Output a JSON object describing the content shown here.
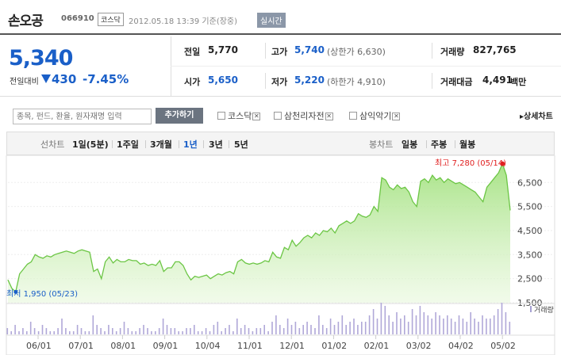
{
  "header": {
    "stock_name": "손오공",
    "stock_code": "066910",
    "market": "코스닥",
    "timestamp": "2012.05.18 13:39  기준(장중)",
    "realtime_btn": "실시간"
  },
  "price": {
    "current": "5,340",
    "change_label": "전일대비",
    "change_amount": "430",
    "change_pct": "-7.45%"
  },
  "stats": {
    "prev_close_label": "전일",
    "prev_close": "5,770",
    "high_label": "고가",
    "high": "5,740",
    "upper_limit": "(상한가 6,630)",
    "volume_label": "거래량",
    "volume": "827,765",
    "open_label": "시가",
    "open": "5,650",
    "low_label": "저가",
    "low": "5,220",
    "lower_limit": "(하한가 4,910)",
    "amount_label": "거래대금",
    "amount": "4,491",
    "amount_unit": "백만"
  },
  "compare": {
    "placeholder": "종목, 펀드, 환율, 원자재명 입력",
    "add_btn": "추가하기",
    "items": [
      "코스닥",
      "삼천리자전",
      "삼익악기"
    ],
    "detail_link": "상세차트"
  },
  "tabs": {
    "line_label": "선차트",
    "line_items": [
      "1일(5분)",
      "1주일",
      "3개월",
      "1년",
      "3년",
      "5년"
    ],
    "candle_label": "봉차트",
    "candle_items": [
      "일봉",
      "주봉",
      "월봉"
    ]
  },
  "colors": {
    "down": "#1a5fc8",
    "up": "#e02020",
    "area": "#9fe07a",
    "line": "#6cc645",
    "volume": "#b0a8d8"
  },
  "chart_data": {
    "type": "area",
    "x_ticks": [
      "06/01",
      "07/01",
      "08/01",
      "09/01",
      "10/04",
      "11/01",
      "12/01",
      "01/02",
      "02/01",
      "03/02",
      "04/02",
      "05/02"
    ],
    "y_ticks": [
      1500,
      2500,
      3500,
      4500,
      5500,
      6500
    ],
    "ylim": [
      1500,
      7300
    ],
    "high_label": "최고 7,280 (05/14)",
    "low_label": "최저 1,950 (05/23)",
    "volume_label": "거래량",
    "close_values": [
      2450,
      2100,
      1950,
      2700,
      2900,
      3100,
      3200,
      3500,
      3400,
      3350,
      3450,
      3400,
      3500,
      3550,
      3600,
      3650,
      3600,
      3550,
      3650,
      3700,
      3650,
      3600,
      2800,
      2900,
      2500,
      3200,
      3400,
      3150,
      3300,
      3200,
      3200,
      3300,
      3250,
      3250,
      3100,
      3150,
      3050,
      3100,
      3050,
      3250,
      2800,
      2950,
      2950,
      3200,
      3200,
      3050,
      2700,
      2450,
      2600,
      2550,
      2600,
      2650,
      2500,
      2600,
      2700,
      2650,
      2750,
      2800,
      2700,
      3200,
      3300,
      3150,
      3100,
      3150,
      3100,
      3150,
      3250,
      3200,
      3600,
      3400,
      3350,
      3800,
      3700,
      4100,
      3850,
      4000,
      4200,
      4300,
      4200,
      4400,
      4300,
      4500,
      4450,
      4600,
      4400,
      4700,
      4800,
      4900,
      4800,
      4900,
      5200,
      5100,
      5050,
      5150,
      5500,
      5300,
      6700,
      6600,
      6300,
      6200,
      6400,
      6250,
      6300,
      6100,
      5700,
      5500,
      6550,
      6650,
      6500,
      6800,
      6600,
      6700,
      6500,
      6650,
      6550,
      6450,
      6500,
      6400,
      6300,
      6200,
      6100,
      5900,
      5700,
      6300,
      6500,
      6700,
      6900,
      7280,
      6800,
      5340
    ],
    "volume_values": [
      2,
      1,
      3,
      1,
      2,
      1,
      4,
      2,
      1,
      3,
      2,
      1,
      1,
      2,
      5,
      2,
      1,
      1,
      3,
      2,
      1,
      1,
      6,
      3,
      2,
      1,
      3,
      2,
      1,
      2,
      4,
      2,
      1,
      1,
      2,
      3,
      2,
      1,
      1,
      2,
      5,
      3,
      2,
      2,
      1,
      1,
      2,
      2,
      3,
      1,
      1,
      2,
      1,
      3,
      4,
      1,
      2,
      3,
      1,
      5,
      2,
      3,
      2,
      1,
      2,
      2,
      3,
      1,
      4,
      6,
      3,
      2,
      5,
      3,
      4,
      2,
      3,
      4,
      3,
      2,
      6,
      3,
      2,
      5,
      3,
      4,
      6,
      3,
      4,
      5,
      3,
      4,
      4,
      6,
      8,
      5,
      10,
      9,
      6,
      4,
      7,
      5,
      6,
      4,
      8,
      6,
      9,
      7,
      6,
      5,
      7,
      6,
      5,
      6,
      5,
      4,
      6,
      5,
      4,
      7,
      5,
      4,
      6,
      5,
      5,
      6,
      8,
      10,
      7,
      4
    ]
  }
}
